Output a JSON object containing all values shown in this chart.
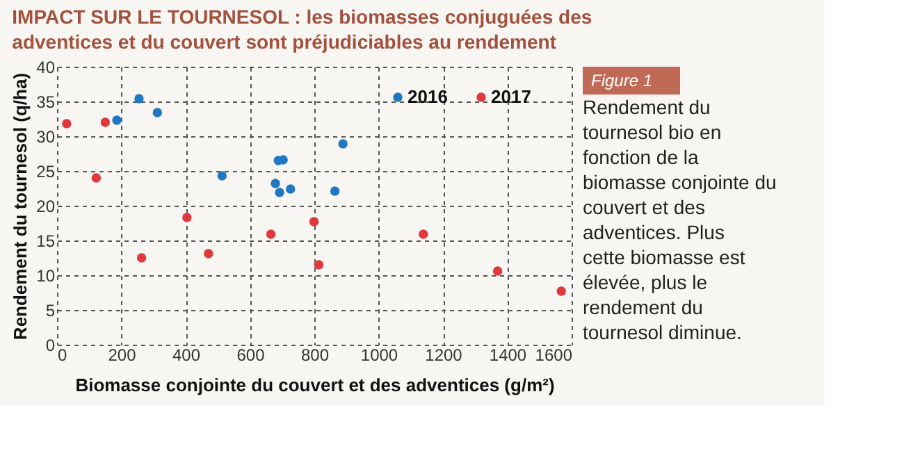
{
  "chart_data": {
    "type": "scatter",
    "title": "IMPACT SUR LE TOURNESOL : les biomasses conjuguées des adventices et du couvert sont préjudiciables au rendement",
    "xlabel": "Biomasse conjointe du couvert et des adventices (g/m²)",
    "ylabel": "Rendement du tournesol (q/ha)",
    "xlim": [
      0,
      1600
    ],
    "xticks": [
      0,
      200,
      400,
      600,
      800,
      1000,
      1200,
      1400,
      1600
    ],
    "ylim": [
      0,
      40
    ],
    "yticks": [
      0,
      5,
      10,
      15,
      20,
      25,
      30,
      35,
      40
    ],
    "grid": true,
    "legend": "top right",
    "marker": "circle",
    "series": [
      {
        "name": "2016",
        "color": "#1f78c1",
        "x": [
          255,
          312,
          186,
          513,
          688,
          703,
          679,
          692,
          726,
          864,
          889
        ],
        "values": [
          35.4,
          33.4,
          32.3,
          24.3,
          26.5,
          26.6,
          23.2,
          21.9,
          22.4,
          22.1,
          28.9
        ]
      },
      {
        "name": "2017",
        "color": "#e0383c",
        "x": [
          30,
          150,
          122,
          404,
          263,
          471,
          665,
          799,
          814,
          1139,
          1370,
          1568
        ],
        "values": [
          31.8,
          32.0,
          24.0,
          18.3,
          12.5,
          13.1,
          15.9,
          17.7,
          11.5,
          15.9,
          10.6,
          7.7
        ]
      }
    ],
    "annotations": [
      "Figure 1",
      "Rendement du tournesol bio en fonction de la biomasse conjointe du couvert et des adventices. Plus cette biomasse est élevée, plus le rendement du tournesol diminue."
    ]
  }
}
